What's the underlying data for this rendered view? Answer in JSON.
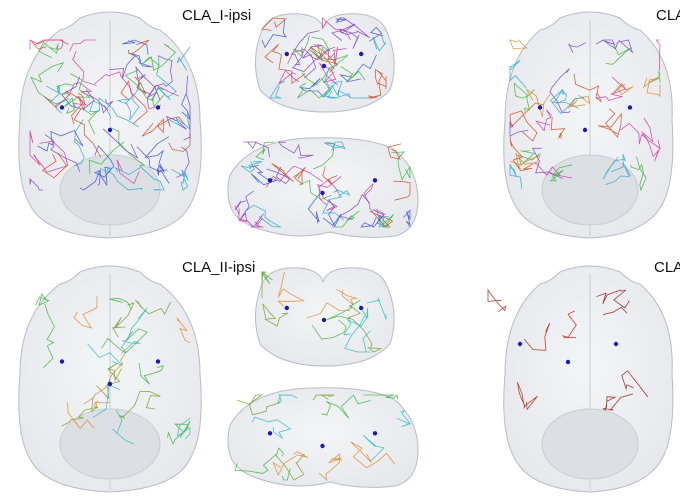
{
  "figure": {
    "panels": [
      {
        "title": "CLA_I-ipsi",
        "neuron_colors": [
          "#7a3fd0",
          "#d23ca0",
          "#3cb43c",
          "#d24a1e",
          "#2aa8d0",
          "#3a54d8"
        ]
      },
      {
        "title": "CLA",
        "neuron_colors": [
          "#2aa8d0",
          "#3cb43c",
          "#d23ca0",
          "#e08a2a",
          "#7a3fd0",
          "#d24a1e"
        ]
      },
      {
        "title": "CLA_II-ipsi",
        "neuron_colors": [
          "#3cb43c",
          "#2ac0c0",
          "#e08a2a",
          "#7a9c2a"
        ]
      },
      {
        "title": "CLA",
        "neuron_colors": [
          "#b02818",
          "#8c1e14"
        ]
      }
    ],
    "soma_color": "#1a1ab4",
    "brain_outline_color": "#b8bcc4"
  }
}
